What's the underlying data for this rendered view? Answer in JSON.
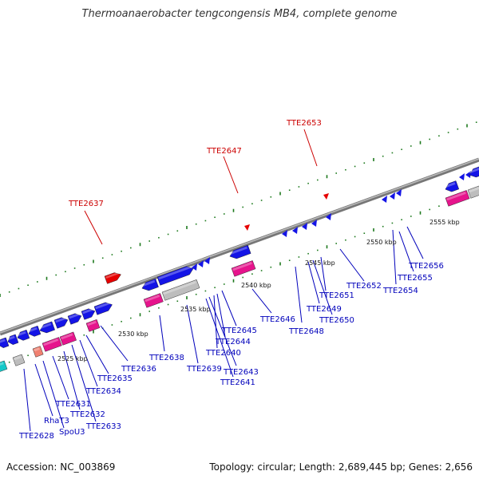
{
  "title": "Thermoanaerobacter tengcongensis MB4, complete genome",
  "footer": {
    "accession": "Accession: NC_003869",
    "summary": "Topology: circular; Length: 2,689,445 bp; Genes: 2,656"
  },
  "colors": {
    "backbone": "#888888",
    "ticks": "#1e7a1e",
    "gene_forward": "#1414e6",
    "gene_pink": "#e6148c",
    "gene_grey": "#bdbdbd",
    "gene_red": "#e60000",
    "gene_cyan": "#14c8c8",
    "gene_salmon": "#f08070",
    "label_blue": "#0000bb",
    "label_red": "#cc0000"
  },
  "kbp_labels": [
    {
      "text": "2525 kbp"
    },
    {
      "text": "2530 kbp"
    },
    {
      "text": "2535 kbp"
    },
    {
      "text": "2540 kbp"
    },
    {
      "text": "2545 kbp"
    },
    {
      "text": "2550 kbp"
    },
    {
      "text": "2555 kbp"
    }
  ],
  "red_labels": [
    {
      "text": "TTE2637"
    },
    {
      "text": "TTE2647"
    },
    {
      "text": "TTE2653"
    }
  ],
  "blue_labels": [
    {
      "text": "TTE2628"
    },
    {
      "text": "RhaT3"
    },
    {
      "text": "SpoU3"
    },
    {
      "text": "TTE2631"
    },
    {
      "text": "TTE2632"
    },
    {
      "text": "TTE2633"
    },
    {
      "text": "TTE2634"
    },
    {
      "text": "TTE2635"
    },
    {
      "text": "TTE2636"
    },
    {
      "text": "TTE2638"
    },
    {
      "text": "TTE2639"
    },
    {
      "text": "TTE2641"
    },
    {
      "text": "TTE2643"
    },
    {
      "text": "TTE2640"
    },
    {
      "text": "TTE2644"
    },
    {
      "text": "TTE2645"
    },
    {
      "text": "TTE2646"
    },
    {
      "text": "TTE2648"
    },
    {
      "text": "TTE2649"
    },
    {
      "text": "TTE2650"
    },
    {
      "text": "TTE2651"
    },
    {
      "text": "TTE2652"
    },
    {
      "text": "TTE2654"
    },
    {
      "text": "TTE2655"
    },
    {
      "text": "TTE2656"
    }
  ]
}
